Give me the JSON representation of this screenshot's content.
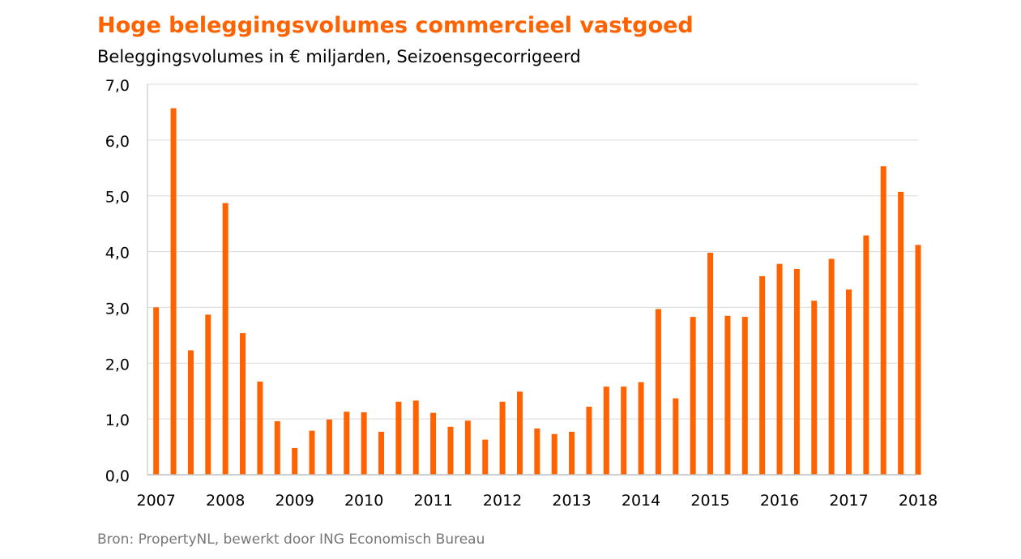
{
  "title": "Hoge beleggingsvolumes commercieel vastgoed",
  "subtitle": "Beleggingsvolumes  in € miljarden, Seizoensgecorrigeerd",
  "source": "Bron: PropertyNL, bewerkt door ING Economisch Bureau",
  "colors": {
    "bar": "#ff6200",
    "title": "#ff6200",
    "grid": "#d9d9d9",
    "axis": "#bfbfbf"
  },
  "chart_data": {
    "type": "bar",
    "title": "Hoge beleggingsvolumes commercieel vastgoed",
    "subtitle": "Beleggingsvolumes  in € miljarden, Seizoensgecorrigeerd",
    "xlabel": "",
    "ylabel": "",
    "ylim": [
      0,
      7
    ],
    "yticks": [
      0,
      1,
      2,
      3,
      4,
      5,
      6,
      7
    ],
    "ytick_labels": [
      "0,0",
      "1,0",
      "2,0",
      "3,0",
      "4,0",
      "5,0",
      "6,0",
      "7,0"
    ],
    "xtick_labels": [
      "2007",
      "2008",
      "2009",
      "2010",
      "2011",
      "2012",
      "2013",
      "2014",
      "2015",
      "2016",
      "2017",
      "2018"
    ],
    "grid": true,
    "legend": "none",
    "categories": [
      "2007 Q1",
      "2007 Q2",
      "2007 Q3",
      "2007 Q4",
      "2008 Q1",
      "2008 Q2",
      "2008 Q3",
      "2008 Q4",
      "2009 Q1",
      "2009 Q2",
      "2009 Q3",
      "2009 Q4",
      "2010 Q1",
      "2010 Q2",
      "2010 Q3",
      "2010 Q4",
      "2011 Q1",
      "2011 Q2",
      "2011 Q3",
      "2011 Q4",
      "2012 Q1",
      "2012 Q2",
      "2012 Q3",
      "2012 Q4",
      "2013 Q1",
      "2013 Q2",
      "2013 Q3",
      "2013 Q4",
      "2014 Q1",
      "2014 Q2",
      "2014 Q3",
      "2014 Q4",
      "2015 Q1",
      "2015 Q2",
      "2015 Q3",
      "2015 Q4",
      "2016 Q1",
      "2016 Q2",
      "2016 Q3",
      "2016 Q4",
      "2017 Q1",
      "2017 Q2",
      "2017 Q3",
      "2017 Q4",
      "2018 Q1"
    ],
    "values": [
      3.0,
      6.57,
      2.23,
      2.87,
      4.87,
      2.54,
      1.67,
      0.96,
      0.48,
      0.79,
      0.99,
      1.13,
      1.12,
      0.77,
      1.31,
      1.33,
      1.11,
      0.86,
      0.97,
      0.63,
      1.31,
      1.49,
      0.83,
      0.73,
      0.77,
      1.22,
      1.58,
      1.58,
      1.66,
      2.97,
      1.37,
      2.83,
      3.98,
      2.85,
      2.83,
      3.56,
      3.78,
      3.69,
      3.12,
      3.87,
      3.32,
      4.29,
      5.53,
      5.07,
      4.12
    ]
  }
}
